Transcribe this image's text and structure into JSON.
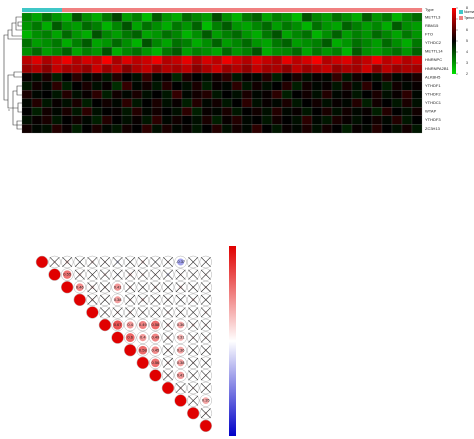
{
  "chart_data": [
    {
      "type": "heatmap",
      "rows": [
        "METTL3",
        "RBM15",
        "FTO",
        "YTHDC2",
        "METTL14",
        "HNRNPC",
        "HNRNPA2B1",
        "ALKBH5",
        "YTHDF1",
        "YTHDF2",
        "YTHDC1",
        "WTAP",
        "YTHDF3",
        "ZC3H13"
      ],
      "annotation_title": "Type",
      "groups": [
        {
          "name": "Normal",
          "color": "#3fc7c7"
        },
        {
          "name": "Tumor",
          "color": "#f08080"
        }
      ],
      "types": [
        "Normal",
        "Normal",
        "Normal",
        "Normal",
        "Tumor",
        "Tumor",
        "Tumor",
        "Tumor",
        "Tumor",
        "Tumor",
        "Tumor",
        "Tumor",
        "Tumor",
        "Tumor",
        "Tumor",
        "Tumor",
        "Tumor",
        "Tumor",
        "Tumor",
        "Tumor",
        "Tumor",
        "Tumor",
        "Tumor",
        "Tumor",
        "Tumor",
        "Tumor",
        "Tumor",
        "Tumor",
        "Tumor",
        "Tumor",
        "Tumor",
        "Tumor",
        "Tumor",
        "Tumor",
        "Tumor",
        "Tumor",
        "Tumor",
        "Tumor",
        "Tumor",
        "Tumor"
      ],
      "clim": [
        2,
        8
      ],
      "cticks": [
        2,
        3,
        4,
        5,
        6,
        7,
        8
      ],
      "values": [
        [
          3.2,
          2.8,
          3.5,
          3.0,
          2.6,
          3.9,
          3.1,
          2.7,
          3.4,
          4.1,
          2.9,
          3.3,
          2.5,
          3.8,
          3.0,
          2.7,
          3.6,
          3.2,
          2.9,
          4.0,
          3.1,
          2.6,
          3.4,
          3.7,
          2.8,
          3.3,
          3.0,
          2.5,
          3.9,
          3.2,
          2.9,
          3.5,
          3.1,
          2.7,
          3.8,
          3.0,
          3.4,
          2.6,
          3.2,
          3.6
        ],
        [
          3.0,
          3.4,
          2.7,
          3.8,
          3.1,
          2.9,
          3.6,
          3.3,
          2.6,
          3.2,
          3.9,
          2.8,
          3.5,
          3.1,
          2.7,
          3.4,
          3.0,
          3.7,
          2.5,
          3.3,
          3.8,
          3.0,
          2.8,
          3.2,
          3.6,
          2.9,
          3.4,
          3.1,
          2.6,
          3.5,
          3.0,
          2.8,
          3.7,
          3.3,
          2.9,
          3.2,
          2.7,
          3.8,
          3.1,
          2.9
        ],
        [
          2.6,
          3.1,
          3.3,
          2.8,
          3.6,
          3.0,
          2.7,
          3.9,
          3.2,
          2.9,
          3.4,
          3.7,
          2.8,
          3.0,
          3.5,
          3.2,
          2.6,
          3.1,
          3.8,
          2.9,
          3.3,
          3.6,
          3.0,
          2.7,
          3.4,
          3.9,
          2.8,
          3.2,
          3.5,
          2.6,
          3.1,
          3.7,
          2.9,
          3.3,
          3.0,
          3.6,
          3.2,
          2.8,
          3.4,
          3.0
        ],
        [
          3.5,
          2.9,
          3.1,
          3.4,
          2.7,
          3.3,
          3.8,
          2.8,
          3.0,
          3.6,
          3.1,
          2.6,
          3.9,
          3.2,
          2.8,
          3.5,
          3.3,
          2.7,
          3.1,
          3.7,
          2.9,
          3.2,
          3.6,
          3.0,
          2.8,
          3.4,
          3.7,
          2.9,
          3.1,
          3.3,
          3.8,
          2.7,
          3.0,
          3.5,
          3.2,
          2.9,
          3.6,
          3.1,
          2.7,
          3.4
        ],
        [
          3.1,
          3.6,
          2.9,
          3.2,
          3.7,
          2.8,
          3.3,
          3.0,
          3.9,
          2.7,
          3.2,
          3.5,
          3.0,
          2.6,
          3.4,
          3.8,
          2.9,
          3.3,
          3.1,
          2.8,
          3.6,
          3.0,
          3.3,
          3.9,
          2.7,
          3.1,
          3.2,
          3.6,
          2.8,
          3.4,
          3.0,
          3.3,
          2.6,
          3.8,
          3.1,
          2.9,
          3.2,
          3.5,
          3.0,
          3.7
        ],
        [
          7.2,
          7.6,
          7.0,
          7.4,
          7.8,
          7.1,
          7.5,
          7.3,
          7.9,
          7.0,
          7.6,
          7.2,
          7.4,
          7.8,
          7.1,
          7.3,
          7.7,
          7.0,
          7.5,
          7.2,
          7.8,
          7.4,
          7.1,
          7.6,
          7.3,
          7.0,
          7.7,
          7.2,
          7.5,
          7.9,
          7.1,
          7.4,
          7.6,
          7.0,
          7.3,
          7.8,
          7.2,
          7.5,
          7.1,
          7.4
        ],
        [
          6.8,
          7.1,
          6.6,
          7.3,
          6.9,
          7.0,
          6.7,
          7.4,
          6.8,
          7.2,
          6.5,
          7.0,
          7.3,
          6.7,
          7.1,
          6.9,
          7.2,
          6.6,
          7.0,
          7.4,
          6.8,
          7.1,
          6.7,
          7.3,
          6.9,
          7.0,
          6.6,
          7.2,
          6.8,
          7.1,
          7.3,
          6.7,
          7.0,
          6.9,
          7.4,
          6.6,
          7.2,
          6.8,
          7.0,
          6.9
        ],
        [
          5.1,
          4.8,
          5.3,
          4.6,
          5.0,
          5.5,
          4.9,
          5.2,
          4.7,
          5.4,
          5.0,
          4.8,
          5.6,
          4.9,
          5.1,
          4.5,
          5.3,
          5.0,
          4.8,
          5.2,
          5.5,
          4.7,
          5.1,
          4.9,
          5.4,
          4.6,
          5.0,
          5.3,
          4.8,
          5.1,
          4.9,
          5.6,
          4.7,
          5.2,
          5.0,
          4.8,
          5.4,
          4.9,
          5.1,
          5.3
        ],
        [
          4.7,
          5.2,
          4.9,
          5.5,
          4.6,
          5.0,
          5.3,
          4.8,
          5.1,
          4.4,
          5.6,
          4.9,
          5.2,
          4.7,
          5.4,
          5.0,
          4.8,
          5.3,
          4.6,
          5.1,
          4.9,
          5.5,
          4.7,
          5.2,
          4.8,
          5.0,
          5.4,
          4.6,
          5.2,
          4.9,
          5.1,
          4.7,
          5.3,
          4.8,
          5.5,
          5.0,
          4.6,
          5.2,
          4.9,
          5.1
        ],
        [
          5.3,
          4.9,
          5.0,
          4.7,
          5.4,
          4.8,
          5.1,
          5.5,
          4.6,
          5.2,
          4.9,
          5.3,
          4.8,
          5.0,
          4.7,
          5.6,
          4.9,
          5.2,
          5.4,
          4.7,
          5.0,
          4.8,
          5.3,
          4.9,
          5.1,
          5.5,
          4.6,
          5.0,
          5.2,
          4.8,
          5.4,
          4.9,
          5.1,
          4.7,
          5.0,
          5.3,
          4.8,
          5.1,
          5.5,
          4.9
        ],
        [
          4.9,
          5.4,
          4.7,
          5.1,
          4.8,
          5.3,
          4.6,
          5.0,
          5.2,
          4.9,
          5.5,
          4.7,
          5.0,
          5.3,
          4.8,
          5.1,
          4.6,
          5.4,
          4.9,
          5.2,
          4.7,
          5.0,
          5.5,
          4.8,
          5.1,
          4.9,
          5.3,
          4.7,
          5.0,
          5.2,
          4.8,
          5.1,
          4.9,
          5.4,
          4.6,
          5.2,
          5.0,
          4.7,
          5.3,
          4.8
        ],
        [
          5.0,
          4.6,
          5.2,
          4.9,
          5.3,
          4.7,
          5.5,
          4.8,
          5.0,
          5.1,
          4.7,
          5.4,
          4.9,
          5.2,
          5.0,
          4.8,
          5.5,
          4.6,
          5.1,
          4.9,
          5.3,
          4.7,
          5.0,
          5.2,
          4.8,
          5.4,
          4.9,
          5.1,
          4.7,
          5.0,
          5.3,
          4.8,
          5.2,
          4.9,
          5.1,
          4.6,
          5.4,
          5.0,
          4.8,
          5.2
        ],
        [
          4.8,
          5.1,
          5.3,
          4.7,
          5.0,
          5.2,
          4.9,
          4.6,
          5.4,
          5.0,
          4.8,
          5.1,
          4.7,
          5.5,
          4.9,
          5.2,
          5.0,
          4.8,
          5.3,
          4.6,
          5.1,
          5.4,
          4.9,
          5.0,
          4.7,
          5.2,
          5.0,
          4.8,
          5.5,
          4.9,
          4.7,
          5.3,
          5.1,
          4.8,
          5.0,
          5.2,
          4.9,
          5.4,
          4.7,
          5.0
        ],
        [
          5.2,
          4.9,
          4.8,
          5.4,
          5.1,
          4.6,
          5.0,
          5.3,
          4.9,
          4.7,
          5.2,
          5.0,
          5.5,
          4.8,
          5.3,
          4.9,
          5.1,
          4.7,
          5.0,
          5.4,
          4.8,
          5.2,
          4.9,
          5.5,
          5.0,
          4.7,
          5.1,
          4.9,
          5.3,
          4.8,
          5.2,
          5.0,
          4.6,
          5.1,
          4.9,
          5.4,
          5.0,
          4.8,
          5.2,
          4.7
        ]
      ]
    },
    {
      "type": "corrplot",
      "clim": [
        -1,
        1
      ],
      "values": [
        [
          1,
          0.08,
          0.12,
          -0.05,
          0.1,
          0.06,
          -0.09,
          0.04,
          0.11,
          -0.03,
          0.07,
          -0.37,
          0.02,
          0.05
        ],
        [
          1,
          0.55,
          0.1,
          0.04,
          0.09,
          -0.06,
          0.12,
          0.08,
          0.05,
          -0.1,
          0.07,
          0.03,
          0.06
        ],
        [
          1,
          0.46,
          0.12,
          0.08,
          0.41,
          0.1,
          0.05,
          0.09,
          -0.04,
          0.11,
          0.06,
          0.07
        ],
        [
          1,
          0.09,
          0.05,
          0.38,
          0.08,
          0.11,
          0.06,
          0.07,
          -0.05,
          0.1,
          0.04
        ],
        [
          1,
          0.05,
          0.08,
          0.1,
          0.07,
          0.04,
          0.09,
          0.06,
          0.03,
          0.08
        ],
        [
          1,
          0.67,
          0.4,
          0.49,
          0.58,
          0.12,
          0.36,
          0.1,
          0.08
        ],
        [
          1,
          0.6,
          0.4,
          0.49,
          0.1,
          0.31,
          0.08,
          0.07
        ],
        [
          1,
          0.58,
          0.45,
          0.09,
          0.36,
          0.06,
          0.05
        ],
        [
          1,
          0.56,
          0.1,
          0.38,
          0.07,
          0.04
        ],
        [
          1,
          0.08,
          0.41,
          0.06,
          0.05
        ],
        [
          1,
          0.09,
          0.07,
          0.05
        ],
        [
          1,
          0.06,
          0.35
        ],
        [
          1,
          0.08
        ],
        [
          1
        ]
      ],
      "value_labels": [
        [
          null,
          null,
          null,
          null,
          null,
          null,
          null,
          null,
          null,
          null,
          null,
          "-0.37",
          null,
          null
        ],
        [
          null,
          "0.55",
          null,
          null,
          null,
          null,
          null,
          null,
          null,
          null,
          null,
          null,
          null
        ],
        [
          null,
          "0.46",
          null,
          null,
          "0.41",
          null,
          null,
          null,
          null,
          null,
          null,
          null
        ],
        [
          null,
          null,
          null,
          "0.38",
          null,
          null,
          null,
          null,
          null,
          null,
          null
        ],
        [
          null,
          null,
          null,
          null,
          null,
          null,
          null,
          null,
          null,
          null
        ],
        [
          null,
          "0.67",
          "0.4",
          "0.49",
          "0.58",
          null,
          "0.36",
          null,
          null
        ],
        [
          null,
          "0.6",
          "0.4",
          "0.49",
          null,
          "0.31",
          null,
          null
        ],
        [
          null,
          "0.58",
          "0.45",
          null,
          "0.36",
          null,
          null
        ],
        [
          null,
          "0.56",
          null,
          "0.38",
          null,
          null
        ],
        [
          null,
          null,
          "0.41",
          null,
          null
        ],
        [
          null,
          null,
          null,
          null
        ],
        [
          null,
          null,
          "0.35"
        ],
        [
          null,
          null
        ],
        [
          null
        ]
      ]
    }
  ]
}
